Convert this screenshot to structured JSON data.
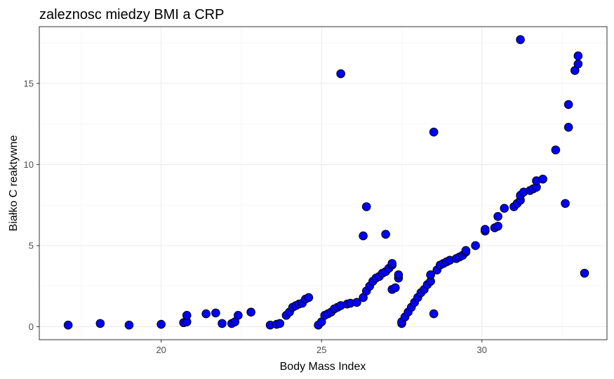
{
  "chart_data": {
    "type": "scatter",
    "title": "zaleznosc miedzy BMI a CRP",
    "xlabel": "Body Mass Index",
    "ylabel": "Białko C reaktywne",
    "xlim": [
      16.2,
      33.9
    ],
    "ylim": [
      -0.8,
      18.5
    ],
    "x_ticks": [
      20,
      25,
      30
    ],
    "y_ticks": [
      0,
      5,
      10,
      15
    ],
    "grid": true,
    "point_fill": "#0000ff",
    "point_stroke": "#000000",
    "points": [
      {
        "x": 17.1,
        "y": 0.1
      },
      {
        "x": 18.1,
        "y": 0.2
      },
      {
        "x": 19.0,
        "y": 0.1
      },
      {
        "x": 20.0,
        "y": 0.15
      },
      {
        "x": 20.7,
        "y": 0.25
      },
      {
        "x": 20.8,
        "y": 0.3
      },
      {
        "x": 20.8,
        "y": 0.7
      },
      {
        "x": 21.4,
        "y": 0.8
      },
      {
        "x": 21.7,
        "y": 0.85
      },
      {
        "x": 21.9,
        "y": 0.2
      },
      {
        "x": 22.2,
        "y": 0.2
      },
      {
        "x": 22.3,
        "y": 0.3
      },
      {
        "x": 22.4,
        "y": 0.7
      },
      {
        "x": 22.8,
        "y": 0.9
      },
      {
        "x": 23.4,
        "y": 0.1
      },
      {
        "x": 23.6,
        "y": 0.15
      },
      {
        "x": 23.7,
        "y": 0.2
      },
      {
        "x": 23.9,
        "y": 0.7
      },
      {
        "x": 24.0,
        "y": 0.9
      },
      {
        "x": 24.1,
        "y": 1.2
      },
      {
        "x": 24.2,
        "y": 1.3
      },
      {
        "x": 24.3,
        "y": 1.4
      },
      {
        "x": 24.4,
        "y": 1.45
      },
      {
        "x": 24.5,
        "y": 1.7
      },
      {
        "x": 24.6,
        "y": 1.8
      },
      {
        "x": 24.9,
        "y": 0.1
      },
      {
        "x": 25.0,
        "y": 0.3
      },
      {
        "x": 25.1,
        "y": 0.7
      },
      {
        "x": 25.2,
        "y": 0.8
      },
      {
        "x": 25.3,
        "y": 0.9
      },
      {
        "x": 25.4,
        "y": 1.1
      },
      {
        "x": 25.5,
        "y": 1.2
      },
      {
        "x": 25.6,
        "y": 1.3
      },
      {
        "x": 25.6,
        "y": 15.6
      },
      {
        "x": 25.8,
        "y": 1.4
      },
      {
        "x": 25.9,
        "y": 1.45
      },
      {
        "x": 26.1,
        "y": 1.5
      },
      {
        "x": 26.3,
        "y": 1.8
      },
      {
        "x": 26.3,
        "y": 5.6
      },
      {
        "x": 26.4,
        "y": 7.4
      },
      {
        "x": 26.4,
        "y": 2.2
      },
      {
        "x": 26.5,
        "y": 2.5
      },
      {
        "x": 26.6,
        "y": 2.8
      },
      {
        "x": 26.7,
        "y": 3.0
      },
      {
        "x": 26.8,
        "y": 3.1
      },
      {
        "x": 26.9,
        "y": 3.3
      },
      {
        "x": 27.0,
        "y": 3.4
      },
      {
        "x": 27.0,
        "y": 5.7
      },
      {
        "x": 27.1,
        "y": 3.6
      },
      {
        "x": 27.2,
        "y": 3.8
      },
      {
        "x": 27.2,
        "y": 3.9
      },
      {
        "x": 27.2,
        "y": 2.3
      },
      {
        "x": 27.3,
        "y": 2.4
      },
      {
        "x": 27.4,
        "y": 3.0
      },
      {
        "x": 27.4,
        "y": 3.2
      },
      {
        "x": 27.5,
        "y": 0.2
      },
      {
        "x": 27.5,
        "y": 0.3
      },
      {
        "x": 27.6,
        "y": 0.6
      },
      {
        "x": 27.7,
        "y": 0.9
      },
      {
        "x": 27.8,
        "y": 1.2
      },
      {
        "x": 27.9,
        "y": 1.5
      },
      {
        "x": 28.0,
        "y": 1.8
      },
      {
        "x": 28.1,
        "y": 2.1
      },
      {
        "x": 28.2,
        "y": 2.3
      },
      {
        "x": 28.3,
        "y": 2.6
      },
      {
        "x": 28.4,
        "y": 2.8
      },
      {
        "x": 28.4,
        "y": 3.2
      },
      {
        "x": 28.5,
        "y": 0.8
      },
      {
        "x": 28.5,
        "y": 12.0
      },
      {
        "x": 28.6,
        "y": 3.5
      },
      {
        "x": 28.7,
        "y": 3.8
      },
      {
        "x": 28.8,
        "y": 3.9
      },
      {
        "x": 28.9,
        "y": 4.0
      },
      {
        "x": 29.0,
        "y": 4.1
      },
      {
        "x": 29.2,
        "y": 4.2
      },
      {
        "x": 29.3,
        "y": 4.3
      },
      {
        "x": 29.4,
        "y": 4.4
      },
      {
        "x": 29.5,
        "y": 4.6
      },
      {
        "x": 29.5,
        "y": 4.7
      },
      {
        "x": 29.8,
        "y": 5.0
      },
      {
        "x": 30.1,
        "y": 5.9
      },
      {
        "x": 30.1,
        "y": 6.0
      },
      {
        "x": 30.4,
        "y": 6.1
      },
      {
        "x": 30.5,
        "y": 6.2
      },
      {
        "x": 30.5,
        "y": 6.8
      },
      {
        "x": 30.7,
        "y": 7.3
      },
      {
        "x": 31.0,
        "y": 7.4
      },
      {
        "x": 31.1,
        "y": 7.6
      },
      {
        "x": 31.2,
        "y": 7.8
      },
      {
        "x": 31.2,
        "y": 8.1
      },
      {
        "x": 31.3,
        "y": 8.3
      },
      {
        "x": 31.2,
        "y": 17.7
      },
      {
        "x": 31.5,
        "y": 8.4
      },
      {
        "x": 31.6,
        "y": 8.5
      },
      {
        "x": 31.7,
        "y": 8.6
      },
      {
        "x": 31.7,
        "y": 9.0
      },
      {
        "x": 31.9,
        "y": 9.1
      },
      {
        "x": 32.3,
        "y": 10.9
      },
      {
        "x": 32.6,
        "y": 7.6
      },
      {
        "x": 32.7,
        "y": 12.3
      },
      {
        "x": 32.7,
        "y": 13.7
      },
      {
        "x": 32.9,
        "y": 15.8
      },
      {
        "x": 33.0,
        "y": 16.2
      },
      {
        "x": 33.0,
        "y": 16.7
      },
      {
        "x": 33.2,
        "y": 3.3
      }
    ]
  }
}
